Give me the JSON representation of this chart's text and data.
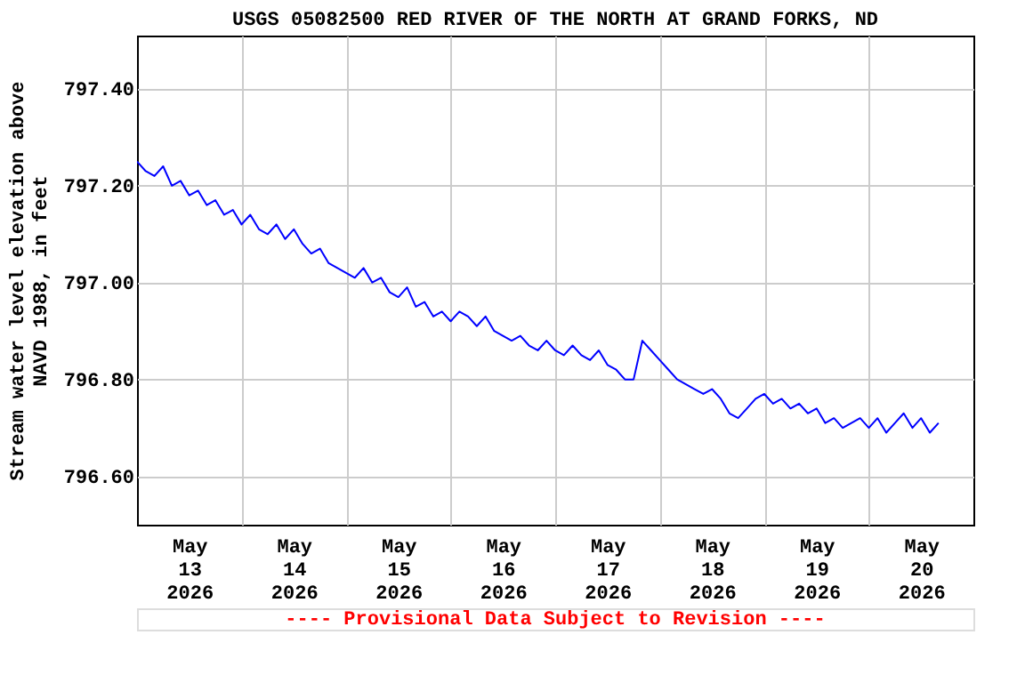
{
  "chart_data": {
    "type": "line",
    "title": "USGS 05082500 RED RIVER OF THE NORTH AT GRAND FORKS, ND",
    "ylabel": "Stream water level elevation above NAVD 1988, in feet",
    "annotations": [
      "---- Provisional Data Subject to Revision ----"
    ],
    "x": [
      "2026-05-13T00:00",
      "2026-05-13T02:00",
      "2026-05-13T04:00",
      "2026-05-13T06:00",
      "2026-05-13T08:00",
      "2026-05-13T10:00",
      "2026-05-13T12:00",
      "2026-05-13T14:00",
      "2026-05-13T16:00",
      "2026-05-13T18:00",
      "2026-05-13T20:00",
      "2026-05-13T22:00",
      "2026-05-14T00:00",
      "2026-05-14T02:00",
      "2026-05-14T04:00",
      "2026-05-14T06:00",
      "2026-05-14T08:00",
      "2026-05-14T10:00",
      "2026-05-14T12:00",
      "2026-05-14T14:00",
      "2026-05-14T16:00",
      "2026-05-14T18:00",
      "2026-05-14T20:00",
      "2026-05-14T22:00",
      "2026-05-15T00:00",
      "2026-05-15T02:00",
      "2026-05-15T04:00",
      "2026-05-15T06:00",
      "2026-05-15T08:00",
      "2026-05-15T10:00",
      "2026-05-15T12:00",
      "2026-05-15T14:00",
      "2026-05-15T16:00",
      "2026-05-15T18:00",
      "2026-05-15T20:00",
      "2026-05-15T22:00",
      "2026-05-16T00:00",
      "2026-05-16T02:00",
      "2026-05-16T04:00",
      "2026-05-16T06:00",
      "2026-05-16T08:00",
      "2026-05-16T10:00",
      "2026-05-16T12:00",
      "2026-05-16T14:00",
      "2026-05-16T16:00",
      "2026-05-16T18:00",
      "2026-05-16T20:00",
      "2026-05-16T22:00",
      "2026-05-17T00:00",
      "2026-05-17T02:00",
      "2026-05-17T04:00",
      "2026-05-17T06:00",
      "2026-05-17T08:00",
      "2026-05-17T10:00",
      "2026-05-17T12:00",
      "2026-05-17T14:00",
      "2026-05-17T16:00",
      "2026-05-17T18:00",
      "2026-05-17T20:00",
      "2026-05-17T22:00",
      "2026-05-18T00:00",
      "2026-05-18T02:00",
      "2026-05-18T04:00",
      "2026-05-18T06:00",
      "2026-05-18T08:00",
      "2026-05-18T10:00",
      "2026-05-18T12:00",
      "2026-05-18T14:00",
      "2026-05-18T16:00",
      "2026-05-18T18:00",
      "2026-05-18T20:00",
      "2026-05-18T22:00",
      "2026-05-19T00:00",
      "2026-05-19T02:00",
      "2026-05-19T04:00",
      "2026-05-19T06:00",
      "2026-05-19T08:00",
      "2026-05-19T10:00",
      "2026-05-19T12:00",
      "2026-05-19T14:00",
      "2026-05-19T16:00",
      "2026-05-19T18:00",
      "2026-05-19T20:00",
      "2026-05-19T22:00",
      "2026-05-20T00:00",
      "2026-05-20T02:00",
      "2026-05-20T04:00",
      "2026-05-20T06:00",
      "2026-05-20T08:00",
      "2026-05-20T10:00",
      "2026-05-20T12:00",
      "2026-05-20T14:00",
      "2026-05-20T16:00"
    ],
    "series": [
      {
        "color": "#0000ff",
        "values": [
          797.25,
          797.23,
          797.22,
          797.24,
          797.2,
          797.21,
          797.18,
          797.19,
          797.16,
          797.17,
          797.14,
          797.15,
          797.12,
          797.14,
          797.11,
          797.1,
          797.12,
          797.09,
          797.11,
          797.08,
          797.06,
          797.07,
          797.04,
          797.03,
          797.02,
          797.01,
          797.03,
          797.0,
          797.01,
          796.98,
          796.97,
          796.99,
          796.95,
          796.96,
          796.93,
          796.94,
          796.92,
          796.94,
          796.93,
          796.91,
          796.93,
          796.9,
          796.89,
          796.88,
          796.89,
          796.87,
          796.86,
          796.88,
          796.86,
          796.85,
          796.87,
          796.85,
          796.84,
          796.86,
          796.83,
          796.82,
          796.8,
          796.8,
          796.88,
          796.86,
          796.84,
          796.82,
          796.8,
          796.79,
          796.78,
          796.77,
          796.78,
          796.76,
          796.73,
          796.72,
          796.74,
          796.76,
          796.77,
          796.75,
          796.76,
          796.74,
          796.75,
          796.73,
          796.74,
          796.71,
          796.72,
          796.7,
          796.71,
          796.72,
          796.7,
          796.72,
          796.69,
          796.71,
          796.73,
          796.7,
          796.72,
          796.69,
          796.71
        ]
      }
    ],
    "xlim": [
      "2026-05-13T00:00",
      "2026-05-21T00:00"
    ],
    "xticks": [
      {
        "value": "2026-05-13T12:00",
        "label": "May 13 2026"
      },
      {
        "value": "2026-05-14T00:00",
        "label": null
      },
      {
        "value": "2026-05-14T12:00",
        "label": "May 14 2026"
      },
      {
        "value": "2026-05-15T00:00",
        "label": null
      },
      {
        "value": "2026-05-15T12:00",
        "label": "May 15 2026"
      },
      {
        "value": "2026-05-16T00:00",
        "label": null
      },
      {
        "value": "2026-05-16T12:00",
        "label": "May 16 2026"
      },
      {
        "value": "2026-05-17T00:00",
        "label": null
      },
      {
        "value": "2026-05-17T12:00",
        "label": "May 17 2026"
      },
      {
        "value": "2026-05-18T00:00",
        "label": null
      },
      {
        "value": "2026-05-18T12:00",
        "label": "May 18 2026"
      },
      {
        "value": "2026-05-19T00:00",
        "label": null
      },
      {
        "value": "2026-05-19T12:00",
        "label": "May 19 2026"
      },
      {
        "value": "2026-05-20T00:00",
        "label": null
      },
      {
        "value": "2026-05-20T12:00",
        "label": "May 20 2026"
      }
    ],
    "ylim": [
      796.5,
      797.51
    ],
    "yticks": [
      {
        "value": 796.6,
        "label": "796.60"
      },
      {
        "value": 796.8,
        "label": "796.80"
      },
      {
        "value": 797.0,
        "label": "797.00"
      },
      {
        "value": 797.2,
        "label": "797.20"
      },
      {
        "value": 797.4,
        "label": "797.40"
      }
    ],
    "grid": true,
    "legend": false,
    "marker": "none",
    "line_style": "solid"
  }
}
